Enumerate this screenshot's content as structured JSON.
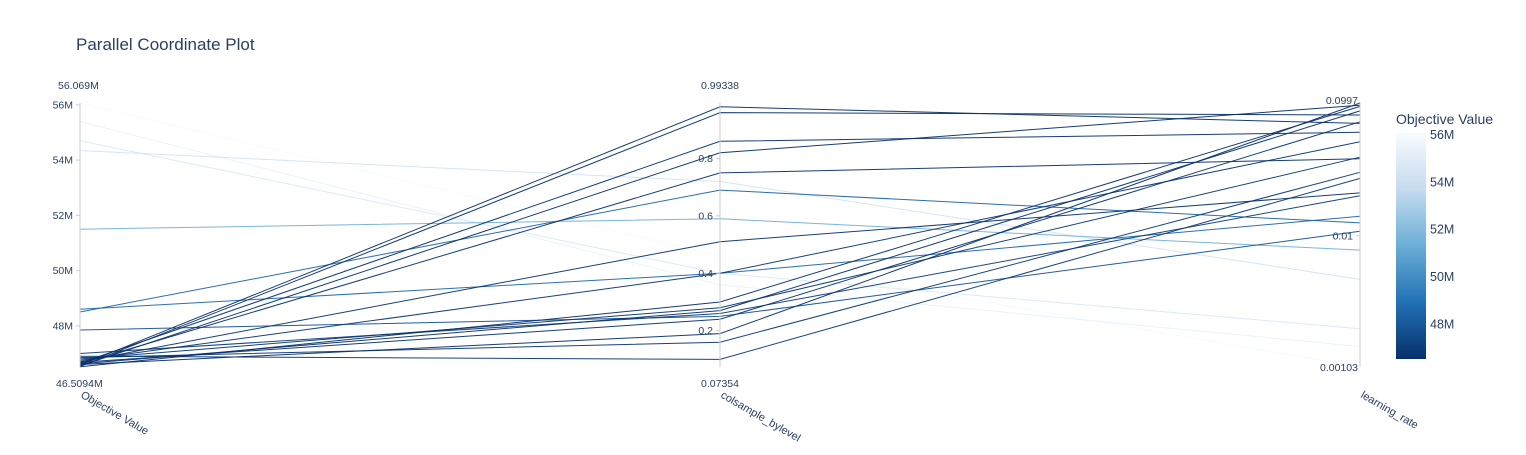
{
  "chart_data": {
    "type": "parallel_coordinates",
    "title": "Parallel Coordinate Plot",
    "dimensions": [
      {
        "label": "Objective Value",
        "range": [
          46.5094,
          56.069
        ],
        "range_labels": {
          "max": "56.069M",
          "min": "46.5094M"
        },
        "ticks": [
          {
            "value": 48,
            "label": "48M"
          },
          {
            "value": 50,
            "label": "50M"
          },
          {
            "value": 52,
            "label": "52M"
          },
          {
            "value": 54,
            "label": "54M"
          },
          {
            "value": 56,
            "label": "56M"
          }
        ],
        "scale": "linear"
      },
      {
        "label": "colsample_bylevel",
        "range": [
          0.07354,
          0.99338
        ],
        "range_labels": {
          "max": "0.99338",
          "min": "0.07354"
        },
        "ticks": [
          {
            "value": 0.2,
            "label": "0.2"
          },
          {
            "value": 0.4,
            "label": "0.4"
          },
          {
            "value": 0.6,
            "label": "0.6"
          },
          {
            "value": 0.8,
            "label": "0.8"
          }
        ],
        "scale": "linear"
      },
      {
        "label": "learning_rate",
        "range": [
          0.00103,
          0.0997
        ],
        "range_labels": {
          "max": "0.0997",
          "min": "0.00103"
        },
        "ticks": [
          {
            "value": 0.01,
            "label": "0.01"
          }
        ],
        "scale": "log"
      }
    ],
    "trials": [
      [
        56.07,
        0.46,
        0.00103
      ],
      [
        55.4,
        0.36,
        0.00147
      ],
      [
        54.7,
        0.4,
        0.002
      ],
      [
        54.35,
        0.72,
        0.0047
      ],
      [
        51.5,
        0.59,
        0.0078
      ],
      [
        48.6,
        0.4,
        0.014
      ],
      [
        48.5,
        0.69,
        0.0125
      ],
      [
        47.85,
        0.25,
        0.0108
      ],
      [
        47.0,
        0.26,
        0.02
      ],
      [
        46.9,
        0.1,
        0.027
      ],
      [
        46.85,
        0.16,
        0.03
      ],
      [
        46.8,
        0.28,
        0.039
      ],
      [
        46.75,
        0.4,
        0.051
      ],
      [
        46.7,
        0.51,
        0.021
      ],
      [
        46.68,
        0.24,
        0.072
      ],
      [
        46.65,
        0.86,
        0.06
      ],
      [
        46.63,
        0.75,
        0.038
      ],
      [
        46.62,
        0.27,
        0.087
      ],
      [
        46.6,
        0.19,
        0.0997
      ],
      [
        46.58,
        0.98,
        0.07
      ],
      [
        46.55,
        0.82,
        0.096
      ],
      [
        46.53,
        0.96,
        0.081
      ],
      [
        46.52,
        0.3,
        0.094
      ]
    ],
    "colorbar": {
      "title": "Objective Value",
      "colorscale": "Blues (reversed)",
      "range": [
        46.5094,
        56.069
      ],
      "ticks": [
        {
          "value": 48,
          "label": "48M"
        },
        {
          "value": 50,
          "label": "50M"
        },
        {
          "value": 52,
          "label": "52M"
        },
        {
          "value": 54,
          "label": "54M"
        },
        {
          "value": 56,
          "label": "56M"
        }
      ],
      "colors": [
        "#08306b",
        "#2171b5",
        "#6baed6",
        "#c6dbef",
        "#f7fbff"
      ]
    },
    "colors": {
      "text": "#2a3f5f",
      "axis": "#cccccc",
      "background": "#ffffff"
    }
  }
}
